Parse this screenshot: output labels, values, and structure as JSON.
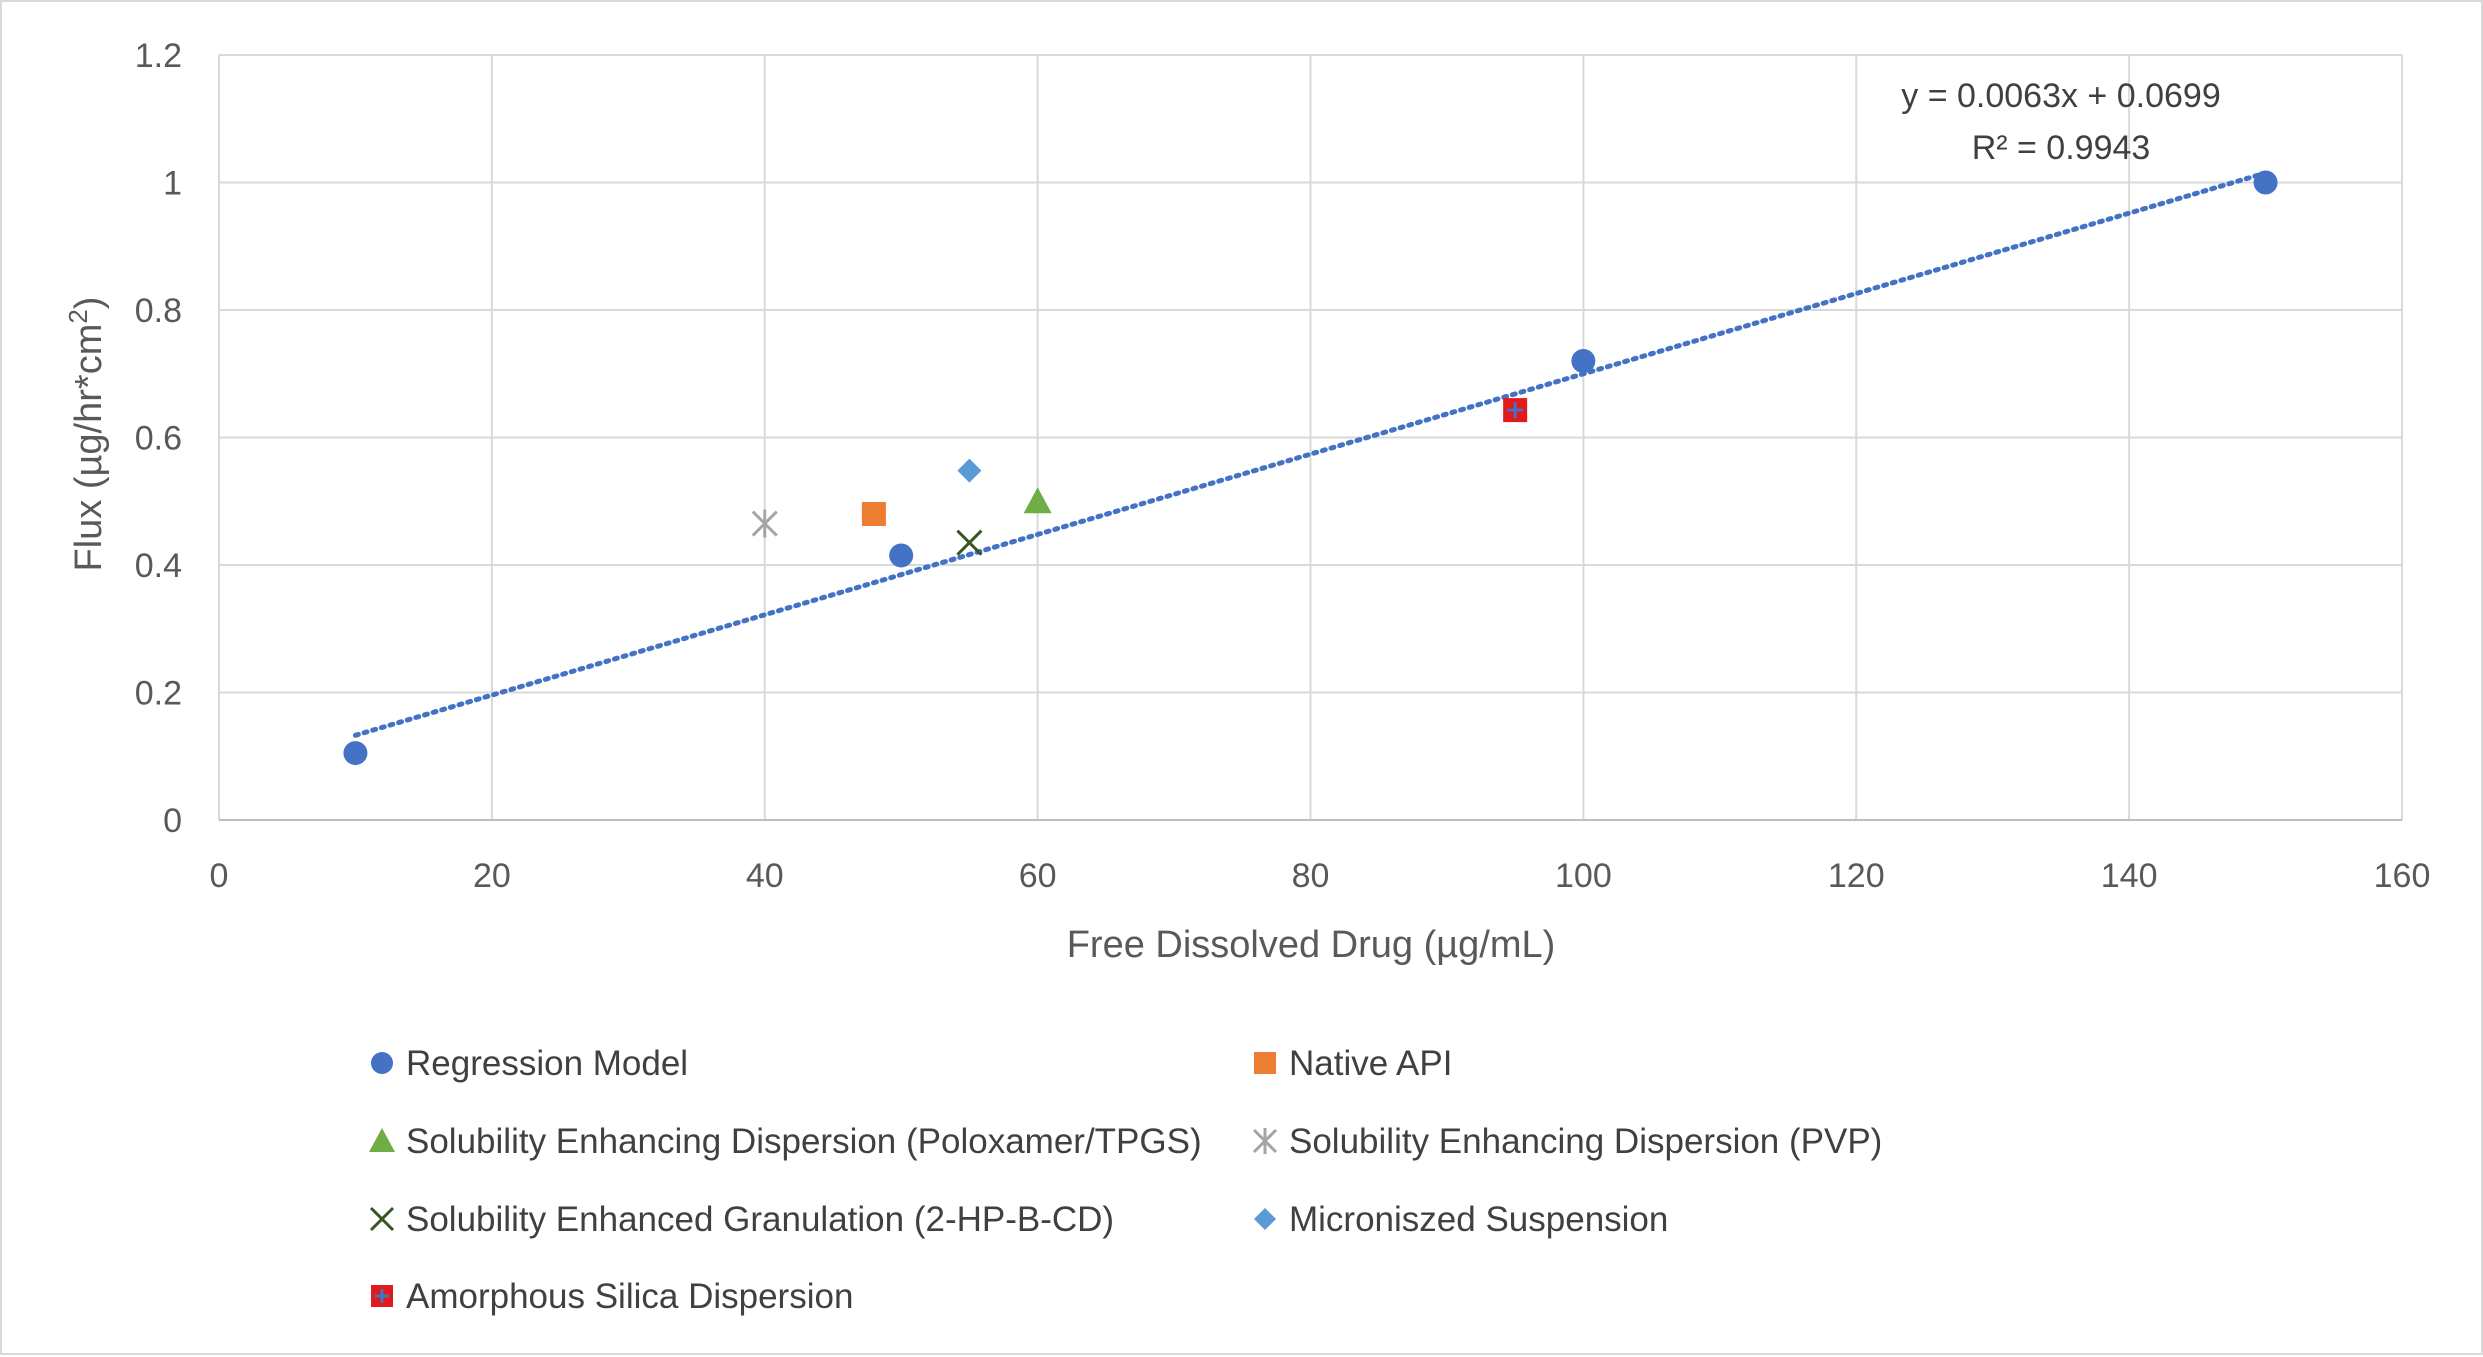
{
  "chart_data": {
    "type": "scatter",
    "title": "",
    "xlabel": "Free Dissolved Drug (µg/mL)",
    "ylabel_main": "Flux (µg/hr*cm",
    "ylabel_sup": "2",
    "ylabel_end": ")",
    "xlim": [
      0,
      160
    ],
    "ylim": [
      0,
      1.2
    ],
    "x_ticks": [
      "0",
      "20",
      "40",
      "60",
      "80",
      "100",
      "120",
      "140",
      "160"
    ],
    "y_ticks": [
      "0",
      "0.2",
      "0.4",
      "0.6",
      "0.8",
      "1",
      "1.2"
    ],
    "grid": true,
    "legend_position": "bottom",
    "series": [
      {
        "name": "Regression Model",
        "marker": "circle",
        "color": "#4472C4",
        "points": [
          [
            10,
            0.105
          ],
          [
            50,
            0.415
          ],
          [
            100,
            0.72
          ],
          [
            150,
            1.0
          ]
        ]
      },
      {
        "name": "Native API",
        "marker": "square",
        "color": "#ED7D31",
        "points": [
          [
            48,
            0.48
          ]
        ]
      },
      {
        "name": "Solubility Enhancing Dispersion (Poloxamer/TPGS)",
        "marker": "triangle",
        "color": "#70AD47",
        "points": [
          [
            60,
            0.5
          ]
        ]
      },
      {
        "name": "Solubility Enhancing Dispersion (PVP)",
        "marker": "star",
        "color": "#A5A5A5",
        "points": [
          [
            40,
            0.465
          ]
        ]
      },
      {
        "name": "Solubility Enhanced Granulation (2-HP-B-CD)",
        "marker": "x",
        "color": "#375623",
        "points": [
          [
            55,
            0.435
          ]
        ]
      },
      {
        "name": "Microniszed Suspension",
        "marker": "diamond",
        "color": "#5B9BD5",
        "points": [
          [
            55,
            0.548
          ]
        ]
      },
      {
        "name": "Amorphous Silica Dispersion",
        "marker": "plus-square",
        "color": "#E31A1C",
        "accent": "#4472C4",
        "points": [
          [
            95,
            0.643
          ]
        ]
      }
    ],
    "trendline": {
      "series": "Regression Model",
      "slope": 0.0063,
      "intercept": 0.0699,
      "x_range": [
        10,
        150
      ],
      "color": "#4472C4",
      "equation": "y = 0.0063x + 0.0699",
      "r_squared": "R² = 0.9943"
    }
  }
}
